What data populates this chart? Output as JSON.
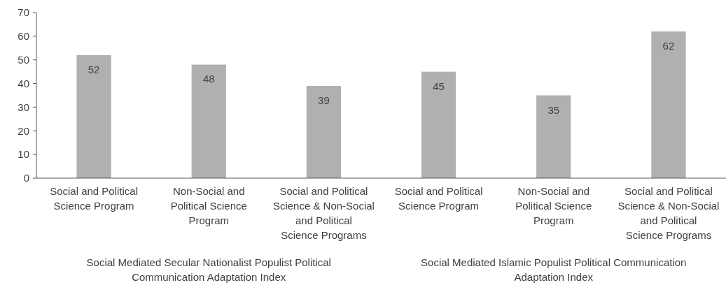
{
  "chart_data": {
    "type": "bar",
    "categories": [
      "Social and Political Science Program",
      "Non-Social and Political Science Program",
      "Social and Political Science & Non-Social and Political Science Programs",
      "Social and Political Science Program",
      "Non-Social and Political Science Program",
      "Social and Political Science & Non-Social and Political Science Programs"
    ],
    "values": [
      52,
      48,
      39,
      45,
      35,
      62
    ],
    "color": "#b0b0b0",
    "ylim": [
      0,
      70
    ],
    "yticks": [
      0,
      10,
      20,
      30,
      40,
      50,
      60,
      70
    ],
    "data_labels": true,
    "grid": false,
    "annotations": [
      "Social Mediated Secular Nationalist Populist Political Communication Adaptation Index",
      "Social Mediated Islamic Populist Political Communication Adaptation Index"
    ]
  }
}
